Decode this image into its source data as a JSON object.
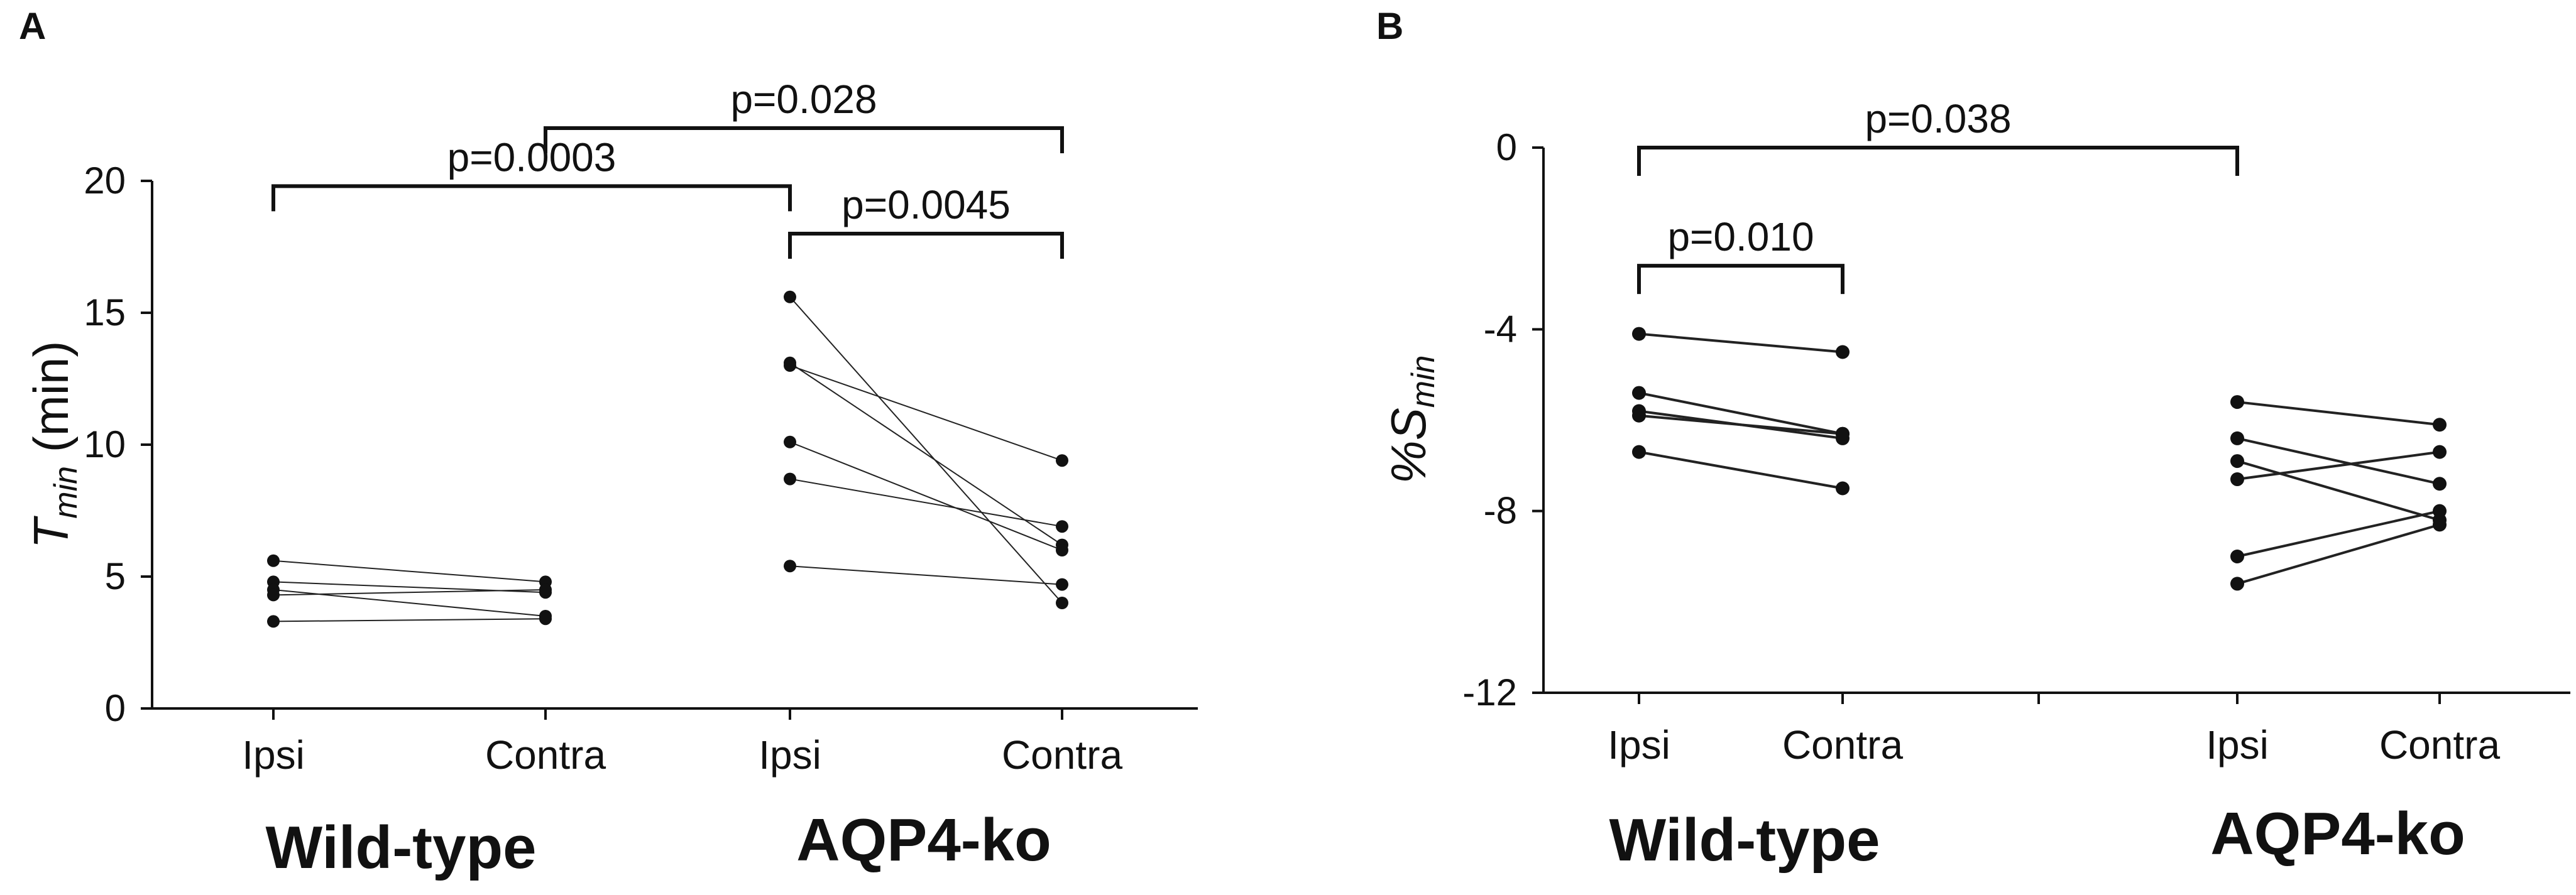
{
  "chart_data": [
    {
      "panel": "A",
      "type": "scatter",
      "ylabel_main": "T",
      "ylabel_sub": "min",
      "ylabel_unit": " (min)",
      "ylim": [
        0,
        20
      ],
      "yticks": [
        0,
        5,
        10,
        15,
        20
      ],
      "categories": [
        "Ipsi",
        "Contra",
        "Ipsi",
        "Contra"
      ],
      "groups": [
        "Wild-type",
        "AQP4-ko"
      ],
      "pairs": [
        {
          "group": "Wild-type",
          "ipsi": 5.6,
          "contra": 4.8
        },
        {
          "group": "Wild-type",
          "ipsi": 4.8,
          "contra": 4.4
        },
        {
          "group": "Wild-type",
          "ipsi": 4.5,
          "contra": 3.5
        },
        {
          "group": "Wild-type",
          "ipsi": 4.3,
          "contra": 4.5
        },
        {
          "group": "Wild-type",
          "ipsi": 3.3,
          "contra": 3.4
        },
        {
          "group": "AQP4-ko",
          "ipsi": 15.6,
          "contra": 4.0
        },
        {
          "group": "AQP4-ko",
          "ipsi": 13.1,
          "contra": 6.2
        },
        {
          "group": "AQP4-ko",
          "ipsi": 13.0,
          "contra": 9.4
        },
        {
          "group": "AQP4-ko",
          "ipsi": 10.1,
          "contra": 6.0
        },
        {
          "group": "AQP4-ko",
          "ipsi": 8.7,
          "contra": 6.9
        },
        {
          "group": "AQP4-ko",
          "ipsi": 5.4,
          "contra": 4.7
        }
      ],
      "comparisons": [
        {
          "label": "p=0.0003",
          "from": 0,
          "to": 2,
          "y": 19.8
        },
        {
          "label": "p=0.028",
          "from": 1,
          "to": 3,
          "y": 22.0
        },
        {
          "label": "p=0.0045",
          "from": 2,
          "to": 3,
          "y": 18.0
        }
      ]
    },
    {
      "panel": "B",
      "type": "scatter",
      "ylabel_main": "%S",
      "ylabel_sub": "min",
      "ylim": [
        -12,
        0
      ],
      "yticks": [
        0,
        -4,
        -8,
        -12
      ],
      "categories": [
        "Ipsi",
        "Contra",
        "Ipsi",
        "Contra"
      ],
      "groups": [
        "Wild-type",
        "AQP4-ko"
      ],
      "pairs": [
        {
          "group": "Wild-type",
          "ipsi": -4.1,
          "contra": -4.5
        },
        {
          "group": "Wild-type",
          "ipsi": -5.4,
          "contra": -6.3
        },
        {
          "group": "Wild-type",
          "ipsi": -5.8,
          "contra": -6.4
        },
        {
          "group": "Wild-type",
          "ipsi": -5.9,
          "contra": -6.3
        },
        {
          "group": "Wild-type",
          "ipsi": -6.7,
          "contra": -7.5
        },
        {
          "group": "AQP4-ko",
          "ipsi": -5.6,
          "contra": -6.1
        },
        {
          "group": "AQP4-ko",
          "ipsi": -6.4,
          "contra": -7.4
        },
        {
          "group": "AQP4-ko",
          "ipsi": -6.9,
          "contra": -8.2
        },
        {
          "group": "AQP4-ko",
          "ipsi": -7.3,
          "contra": -6.7
        },
        {
          "group": "AQP4-ko",
          "ipsi": -9.0,
          "contra": -8.0
        },
        {
          "group": "AQP4-ko",
          "ipsi": -9.6,
          "contra": -8.3
        }
      ],
      "comparisons": [
        {
          "label": "p=0.038",
          "from": 0,
          "to": 2,
          "y": 0.0
        },
        {
          "label": "p=0.010",
          "from": 0,
          "to": 1,
          "y": -2.6
        }
      ]
    }
  ]
}
